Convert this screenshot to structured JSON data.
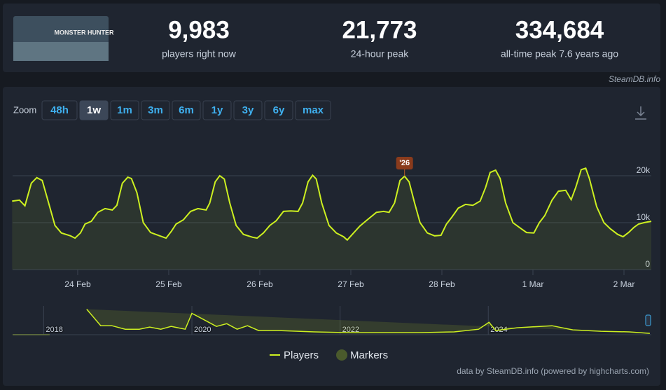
{
  "header": {
    "thumbnail_text": "MONSTER HUNTER",
    "stats": [
      {
        "value": "9,983",
        "label": "players right now"
      },
      {
        "value": "21,773",
        "label": "24-hour peak"
      },
      {
        "value": "334,684",
        "label": "all-time peak 7.6 years ago"
      }
    ]
  },
  "watermark": "SteamDB.info",
  "zoom": {
    "label": "Zoom",
    "buttons": [
      "48h",
      "1w",
      "1m",
      "3m",
      "6m",
      "1y",
      "3y",
      "6y",
      "max"
    ],
    "active": "1w"
  },
  "chart_data": {
    "type": "line",
    "grid": true,
    "series": [
      {
        "name": "Players",
        "color": "#cdf020",
        "x": [
          0.28,
          0.36,
          0.42,
          0.49,
          0.55,
          0.61,
          0.67,
          0.75,
          0.82,
          0.92,
          0.97,
          1.03,
          1.08,
          1.15,
          1.22,
          1.3,
          1.38,
          1.43,
          1.49,
          1.55,
          1.59,
          1.65,
          1.72,
          1.8,
          1.9,
          1.97,
          2.03,
          2.08,
          2.16,
          2.24,
          2.32,
          2.41,
          2.45,
          2.51,
          2.56,
          2.61,
          2.67,
          2.74,
          2.82,
          2.92,
          2.97,
          3.04,
          3.11,
          3.18,
          3.26,
          3.34,
          3.42,
          3.47,
          3.53,
          3.58,
          3.62,
          3.68,
          3.76,
          3.84,
          3.92,
          3.96,
          4.03,
          4.1,
          4.18,
          4.28,
          4.36,
          4.42,
          4.48,
          4.54,
          4.59,
          4.64,
          4.7,
          4.76,
          4.84,
          4.92,
          4.99,
          5.05,
          5.11,
          5.18,
          5.26,
          5.34,
          5.42,
          5.48,
          5.53,
          5.59,
          5.64,
          5.7,
          5.78,
          5.85,
          5.93,
          6.01,
          6.07,
          6.13,
          6.21,
          6.28,
          6.36,
          6.42,
          6.47,
          6.53,
          6.58,
          6.62,
          6.7,
          6.78,
          6.85,
          6.93,
          6.99,
          7.05,
          7.11,
          7.16,
          7.22,
          7.3
        ],
        "values": [
          14600,
          14800,
          13600,
          18400,
          19600,
          19000,
          14900,
          9400,
          7800,
          7200,
          6700,
          7800,
          9700,
          10300,
          12200,
          13000,
          12700,
          13700,
          18400,
          19700,
          19400,
          16400,
          10000,
          7900,
          7200,
          6700,
          8200,
          9700,
          10600,
          12400,
          13000,
          12700,
          14200,
          18700,
          20000,
          19300,
          14200,
          9400,
          7500,
          6900,
          6700,
          7800,
          9400,
          10400,
          12400,
          12500,
          12400,
          14200,
          18700,
          20100,
          19300,
          14200,
          9400,
          7800,
          7000,
          6300,
          7800,
          9300,
          10600,
          12200,
          12400,
          12200,
          14200,
          19000,
          19900,
          18700,
          14200,
          10000,
          7800,
          7200,
          7300,
          9700,
          11200,
          13100,
          13900,
          13700,
          14600,
          17500,
          20700,
          21200,
          19400,
          14200,
          10000,
          9000,
          7900,
          7800,
          10000,
          11500,
          14800,
          16700,
          16900,
          14900,
          17500,
          21300,
          21600,
          19400,
          13400,
          10000,
          8700,
          7500,
          7000,
          7900,
          9000,
          9700,
          10000,
          10300
        ]
      },
      {
        "name": "Markers",
        "color": "#4a5a2c",
        "values": []
      }
    ],
    "annotations": [
      {
        "label": "'26",
        "x": 4.59,
        "y": 19900
      }
    ],
    "xlim": [
      0.285,
      7.3
    ],
    "xticks": [
      {
        "value": 1,
        "label": "24 Feb"
      },
      {
        "value": 2,
        "label": "25 Feb"
      },
      {
        "value": 3,
        "label": "26 Feb"
      },
      {
        "value": 4,
        "label": "27 Feb"
      },
      {
        "value": 5,
        "label": "28 Feb"
      },
      {
        "value": 6,
        "label": "1 Mar"
      },
      {
        "value": 7,
        "label": "2 Mar"
      }
    ],
    "ylim": [
      0,
      29000
    ],
    "yticks": [
      0,
      {
        "value": 10000,
        "label": "10k"
      },
      {
        "value": 20000,
        "label": "20k"
      }
    ]
  },
  "navigator": {
    "color": "#cdf020",
    "x": [
      2017.58,
      2018.08,
      2018.3,
      2018.58,
      2018.77,
      2018.92,
      2019.1,
      2019.29,
      2019.43,
      2019.58,
      2019.72,
      2019.91,
      2020.0,
      2020.14,
      2020.33,
      2020.47,
      2020.61,
      2020.75,
      2020.9,
      2021.18,
      2021.65,
      2022.12,
      2023.07,
      2023.54,
      2023.87,
      2024.01,
      2024.1,
      2024.39,
      2024.86,
      2025.14,
      2025.52,
      2025.9,
      2026.18
    ],
    "values": [
      0,
      0,
      null,
      302000,
      106000,
      106000,
      65000,
      65000,
      90000,
      65000,
      98000,
      65000,
      253000,
      188000,
      98000,
      130000,
      65000,
      106000,
      49000,
      49000,
      33000,
      24000,
      24000,
      33000,
      65000,
      147000,
      49000,
      82000,
      106000,
      57000,
      41000,
      33000,
      16000
    ],
    "xlim": [
      2017.58,
      2026.2
    ],
    "xticks": [
      2018,
      2020,
      2022,
      2024
    ],
    "ylim": [
      0,
      340000
    ]
  },
  "credits": "data by SteamDB.info (powered by highcharts.com)"
}
